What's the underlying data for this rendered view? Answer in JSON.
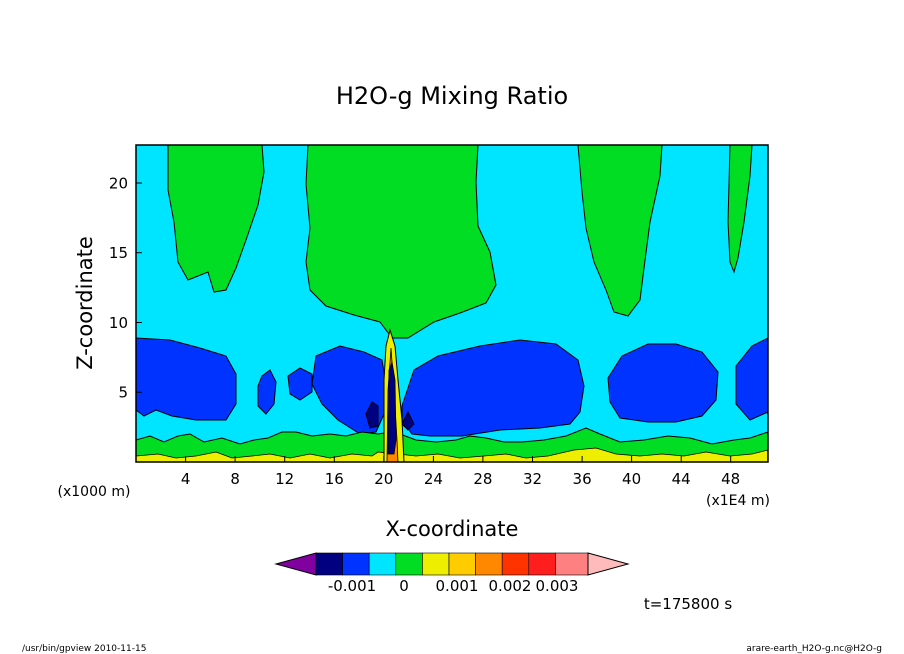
{
  "chart_data": {
    "type": "heatmap",
    "title": "H2O-g Mixing Ratio",
    "xlabel": "X-coordinate",
    "ylabel": "Z-coordinate",
    "x_unit_label": "(x1E4 m)",
    "y_unit_label": "(x1000 m)",
    "x_ticks": [
      4,
      8,
      12,
      16,
      20,
      24,
      28,
      32,
      36,
      40,
      44,
      48
    ],
    "y_ticks": [
      5,
      10,
      15,
      20
    ],
    "xlim": [
      0,
      51
    ],
    "ylim": [
      0,
      22.7
    ],
    "time_label": "t=175800 s",
    "colorbar": {
      "tick_labels": [
        "-0.001",
        "0",
        "0.001",
        "0.002",
        "0.003"
      ],
      "colors": [
        "#8000a0",
        "#000080",
        "#0033ff",
        "#00e5ff",
        "#00dd22",
        "#eeee00",
        "#ffcc00",
        "#ff8800",
        "#ff3300",
        "#ff1e1e",
        "#ff8080",
        "#ffbbbb"
      ]
    }
  },
  "footer": {
    "left": "/usr/bin/gpview   2010-11-15",
    "right": "arare-earth_H2O-g.nc@H2O-g"
  }
}
